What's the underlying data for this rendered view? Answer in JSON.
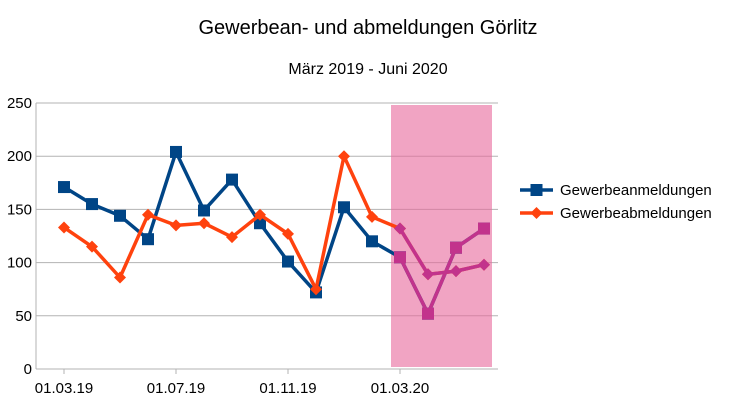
{
  "chart_data": {
    "type": "line",
    "title": "Gewerbean- und abmeldungen Görlitz",
    "subtitle": "März 2019 - Juni 2020",
    "xlabel": "",
    "ylabel": "",
    "ylim": [
      0,
      250
    ],
    "yticks": [
      "0",
      "50",
      "100",
      "150",
      "200",
      "250"
    ],
    "x": [
      "03.2019",
      "04.2019",
      "05.2019",
      "06.2019",
      "07.2019",
      "08.2019",
      "09.2019",
      "10.2019",
      "11.2019",
      "12.2019",
      "01.2020",
      "02.2020",
      "03.2020",
      "04.2020",
      "05.2020",
      "06.2020"
    ],
    "xtick_labels": [
      {
        "label": "01.03.19",
        "index": 0
      },
      {
        "label": "01.07.19",
        "index": 4
      },
      {
        "label": "01.11.19",
        "index": 8
      },
      {
        "label": "01.03.20",
        "index": 12
      }
    ],
    "series": [
      {
        "name": "Gewerbeanmeldungen",
        "color": "#004586",
        "marker": "square",
        "values": [
          171,
          155,
          144,
          122,
          204,
          149,
          178,
          137,
          101,
          72,
          152,
          120,
          105,
          52,
          114,
          132
        ]
      },
      {
        "name": "Gewerbeabmeldungen",
        "color": "#ff420e",
        "marker": "diamond",
        "values": [
          133,
          115,
          86,
          145,
          135,
          137,
          124,
          145,
          127,
          75,
          200,
          143,
          132,
          89,
          92,
          98
        ]
      }
    ],
    "highlight": {
      "from_index": 12,
      "to_index": 15,
      "color": "#e7679b",
      "opacity": 0.6,
      "overlay_line_color": "#c2338c"
    },
    "grid": "horizontal",
    "legend_position": "right"
  }
}
